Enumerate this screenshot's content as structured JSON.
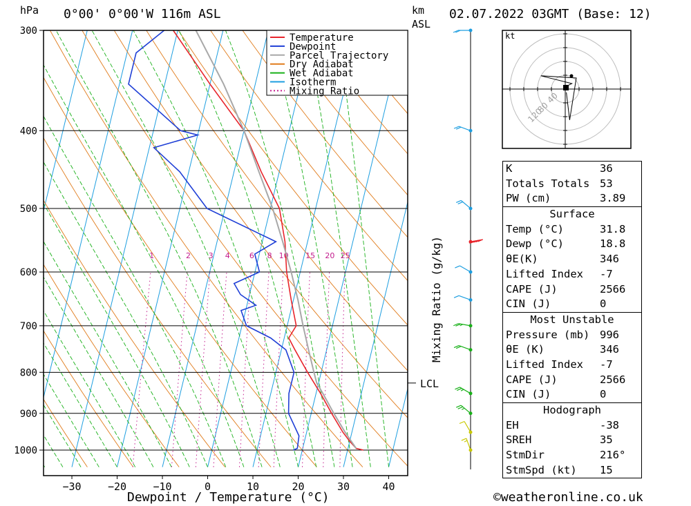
{
  "header": {
    "hpa_label": "hPa",
    "location": "0°00' 0°00'W 116m ASL",
    "km_label": "km",
    "asl_label": "ASL",
    "datetime": "02.07.2022 03GMT (Base: 12)"
  },
  "axis": {
    "xlabel": "Dewpoint / Temperature (°C)",
    "mixing_ratio_label": "Mixing Ratio (g/kg)",
    "lcl_label": "LCL",
    "hodo_unit": "kt",
    "copyright": "©weatheronline.co.uk"
  },
  "legend": [
    {
      "name": "Temperature",
      "color": "#e8242b"
    },
    {
      "name": "Dewpoint",
      "color": "#1f3fd6"
    },
    {
      "name": "Parcel Trajectory",
      "color": "#a8a8a8"
    },
    {
      "name": "Dry Adiabat",
      "color": "#e07b1a"
    },
    {
      "name": "Wet Adiabat",
      "color": "#18b018"
    },
    {
      "name": "Isotherm",
      "color": "#1d9ee0"
    },
    {
      "name": "Mixing Ratio",
      "color": "#c21a8c"
    }
  ],
  "chart_data": {
    "type": "line",
    "title": "",
    "xlabel": "Dewpoint / Temperature (°C)",
    "ylabel": "hPa",
    "pressure_ticks": [
      300,
      400,
      500,
      600,
      700,
      800,
      900,
      1000
    ],
    "temperature_ticks": [
      -30,
      -20,
      -10,
      0,
      10,
      20,
      30,
      40
    ],
    "xlim": [
      -38,
      43
    ],
    "ylim": [
      1050,
      300
    ],
    "skew_deg_per_decade": 43,
    "mixing_ratio_values": [
      1,
      2,
      3,
      4,
      6,
      8,
      10,
      15,
      20,
      25
    ],
    "mixing_ratio_label_level_hpa": 580,
    "lcl_hpa": 825,
    "series": [
      {
        "name": "Temperature",
        "color": "#e8242b",
        "points": [
          [
            1000,
            33.5
          ],
          [
            995,
            31.8
          ],
          [
            975,
            30
          ],
          [
            950,
            28
          ],
          [
            900,
            24.5
          ],
          [
            850,
            21
          ],
          [
            800,
            17
          ],
          [
            750,
            13
          ],
          [
            725,
            11
          ],
          [
            700,
            12
          ],
          [
            650,
            9.5
          ],
          [
            600,
            7
          ],
          [
            550,
            5
          ],
          [
            500,
            2
          ],
          [
            450,
            -4
          ],
          [
            400,
            -10
          ],
          [
            350,
            -20
          ],
          [
            300,
            -31
          ]
        ]
      },
      {
        "name": "Dewpoint",
        "color": "#1f3fd6",
        "points": [
          [
            1000,
            18
          ],
          [
            995,
            18.8
          ],
          [
            960,
            18.5
          ],
          [
            900,
            15
          ],
          [
            850,
            14
          ],
          [
            800,
            14
          ],
          [
            750,
            11
          ],
          [
            725,
            7
          ],
          [
            700,
            1
          ],
          [
            670,
            -1
          ],
          [
            660,
            2
          ],
          [
            640,
            -2
          ],
          [
            620,
            -4
          ],
          [
            600,
            1
          ],
          [
            570,
            -1
          ],
          [
            550,
            3
          ],
          [
            500,
            -14
          ],
          [
            450,
            -22
          ],
          [
            420,
            -29
          ],
          [
            405,
            -20
          ],
          [
            400,
            -24
          ],
          [
            350,
            -38
          ],
          [
            320,
            -38
          ],
          [
            300,
            -33
          ]
        ]
      },
      {
        "name": "Parcel Trajectory",
        "color": "#a8a8a8",
        "points": [
          [
            995,
            31.8
          ],
          [
            950,
            28.5
          ],
          [
            900,
            25
          ],
          [
            850,
            21.5
          ],
          [
            825,
            19.6
          ],
          [
            800,
            18.4
          ],
          [
            750,
            16
          ],
          [
            700,
            13.5
          ],
          [
            650,
            11
          ],
          [
            600,
            8
          ],
          [
            550,
            4.5
          ],
          [
            500,
            0.5
          ],
          [
            450,
            -4.5
          ],
          [
            400,
            -10
          ],
          [
            350,
            -17
          ],
          [
            300,
            -26
          ]
        ]
      }
    ]
  },
  "barbs": [
    {
      "p": 1000,
      "speed": 5,
      "dir": 200,
      "color": "#c8c800"
    },
    {
      "p": 950,
      "speed": 10,
      "dir": 210,
      "color": "#c8c800"
    },
    {
      "p": 900,
      "speed": 15,
      "dir": 230,
      "color": "#18b018"
    },
    {
      "p": 850,
      "speed": 15,
      "dir": 240,
      "color": "#18b018"
    },
    {
      "p": 750,
      "speed": 20,
      "dir": 250,
      "color": "#18b018"
    },
    {
      "p": 700,
      "speed": 15,
      "dir": 260,
      "color": "#18b018"
    },
    {
      "p": 650,
      "speed": 10,
      "dir": 250,
      "color": "#1d9ee0"
    },
    {
      "p": 600,
      "speed": 10,
      "dir": 240,
      "color": "#1d9ee0"
    },
    {
      "p": 550,
      "speed": 50,
      "dir": 100,
      "color": "#e8242b"
    },
    {
      "p": 500,
      "speed": 20,
      "dir": 230,
      "color": "#1d9ee0"
    },
    {
      "p": 400,
      "speed": 20,
      "dir": 250,
      "color": "#1d9ee0"
    },
    {
      "p": 300,
      "speed": 20,
      "dir": 270,
      "color": "#1d9ee0"
    }
  ],
  "hodograph": {
    "ring_labels": [
      "40",
      "80",
      "120"
    ],
    "path": [
      [
        2,
        3
      ],
      [
        6,
        5
      ],
      [
        -22,
        12
      ],
      [
        10,
        10
      ],
      [
        4,
        -28
      ],
      [
        1,
        -3
      ]
    ]
  },
  "indices": {
    "rows": [
      {
        "k": "K",
        "v": "36"
      },
      {
        "k": "Totals Totals",
        "v": "53"
      },
      {
        "k": "PW (cm)",
        "v": "3.89"
      }
    ]
  },
  "surface": {
    "title": "Surface",
    "rows": [
      {
        "k": "Temp (°C)",
        "v": "31.8"
      },
      {
        "k": "Dewp (°C)",
        "v": "18.8"
      },
      {
        "k": "θE(K)",
        "v": "346"
      },
      {
        "k": "Lifted Index",
        "v": "-7"
      },
      {
        "k": "CAPE (J)",
        "v": "2566"
      },
      {
        "k": "CIN (J)",
        "v": "0"
      }
    ]
  },
  "unstable": {
    "title": "Most Unstable",
    "rows": [
      {
        "k": "Pressure (mb)",
        "v": "996"
      },
      {
        "k": "θE (K)",
        "v": "346"
      },
      {
        "k": "Lifted Index",
        "v": "-7"
      },
      {
        "k": "CAPE (J)",
        "v": "2566"
      },
      {
        "k": "CIN (J)",
        "v": "0"
      }
    ]
  },
  "hodotable": {
    "title": "Hodograph",
    "rows": [
      {
        "k": "EH",
        "v": "-38"
      },
      {
        "k": "SREH",
        "v": "35"
      },
      {
        "k": "StmDir",
        "v": "216°"
      },
      {
        "k": "StmSpd (kt)",
        "v": "15"
      }
    ]
  }
}
